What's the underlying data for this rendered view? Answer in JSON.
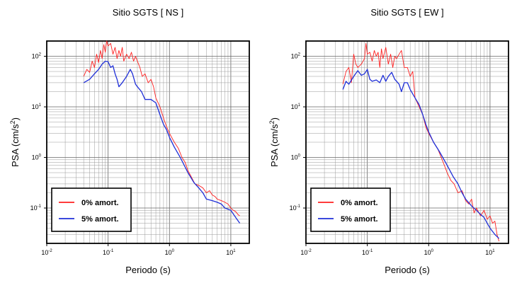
{
  "chart_data": [
    {
      "type": "line",
      "title": "Sitio SGTS [ NS ]",
      "xlabel": "Periodo (s)",
      "ylabel": "PSA (cm/s²)",
      "xscale": "log",
      "yscale": "log",
      "xlim": [
        0.01,
        20
      ],
      "ylim": [
        0.02,
        200
      ],
      "grid": true,
      "legend_position": "bottom-left",
      "x_ticks": [
        {
          "value": 0.01,
          "base": "10",
          "exp": "-2"
        },
        {
          "value": 0.1,
          "base": "10",
          "exp": "-1"
        },
        {
          "value": 1,
          "base": "10",
          "exp": "0"
        },
        {
          "value": 10,
          "base": "10",
          "exp": "1"
        }
      ],
      "y_ticks": [
        {
          "value": 0.1,
          "base": "10",
          "exp": "-1"
        },
        {
          "value": 1,
          "base": "10",
          "exp": "0"
        },
        {
          "value": 10,
          "base": "10",
          "exp": "1"
        },
        {
          "value": 100,
          "base": "10",
          "exp": "2"
        }
      ],
      "series": [
        {
          "name": "0% amort.",
          "color": "#ff2020",
          "x": [
            0.04,
            0.045,
            0.05,
            0.055,
            0.06,
            0.065,
            0.07,
            0.075,
            0.08,
            0.085,
            0.09,
            0.095,
            0.1,
            0.11,
            0.12,
            0.13,
            0.14,
            0.15,
            0.16,
            0.17,
            0.18,
            0.2,
            0.22,
            0.24,
            0.26,
            0.28,
            0.3,
            0.33,
            0.36,
            0.4,
            0.45,
            0.5,
            0.55,
            0.6,
            0.7,
            0.8,
            0.9,
            1.0,
            1.2,
            1.4,
            1.6,
            1.8,
            2.0,
            2.3,
            2.6,
            3.0,
            3.5,
            4.0,
            4.5,
            5.0,
            5.5,
            6.0,
            7.0,
            8.0,
            9.0,
            10.0,
            11.0,
            12.0,
            13.0,
            14.0
          ],
          "y": [
            40,
            55,
            48,
            80,
            60,
            110,
            75,
            130,
            90,
            170,
            120,
            200,
            160,
            180,
            110,
            150,
            90,
            130,
            100,
            150,
            80,
            110,
            90,
            120,
            80,
            100,
            80,
            60,
            40,
            45,
            30,
            35,
            25,
            15,
            10,
            6,
            4,
            3,
            2,
            1.5,
            1.0,
            0.8,
            0.55,
            0.4,
            0.3,
            0.28,
            0.25,
            0.2,
            0.22,
            0.18,
            0.17,
            0.15,
            0.14,
            0.13,
            0.12,
            0.1,
            0.09,
            0.085,
            0.075,
            0.07
          ]
        },
        {
          "name": "5% amort.",
          "color": "#1f2fd8",
          "x": [
            0.04,
            0.05,
            0.06,
            0.07,
            0.08,
            0.09,
            0.1,
            0.11,
            0.12,
            0.13,
            0.14,
            0.15,
            0.17,
            0.2,
            0.23,
            0.25,
            0.28,
            0.3,
            0.35,
            0.4,
            0.5,
            0.6,
            0.7,
            0.8,
            0.9,
            1.0,
            1.2,
            1.5,
            2.0,
            2.5,
            3.0,
            3.5,
            4.0,
            5.0,
            6.0,
            7.0,
            8.0,
            10.0,
            12.0,
            14.0
          ],
          "y": [
            30,
            35,
            45,
            55,
            70,
            80,
            78,
            60,
            65,
            45,
            35,
            25,
            30,
            40,
            55,
            45,
            28,
            25,
            20,
            14,
            14,
            12,
            7,
            4.5,
            3.5,
            2.5,
            1.6,
            1.0,
            0.5,
            0.32,
            0.25,
            0.2,
            0.15,
            0.14,
            0.13,
            0.12,
            0.1,
            0.09,
            0.065,
            0.05
          ]
        }
      ]
    },
    {
      "type": "line",
      "title": "Sitio SGTS [ EW ]",
      "xlabel": "Periodo (s)",
      "ylabel": "PSA (cm/s²)",
      "xscale": "log",
      "yscale": "log",
      "xlim": [
        0.01,
        20
      ],
      "ylim": [
        0.02,
        200
      ],
      "grid": true,
      "legend_position": "bottom-left",
      "x_ticks": [
        {
          "value": 0.01,
          "base": "10",
          "exp": "-2"
        },
        {
          "value": 0.1,
          "base": "10",
          "exp": "-1"
        },
        {
          "value": 1,
          "base": "10",
          "exp": "0"
        },
        {
          "value": 10,
          "base": "10",
          "exp": "1"
        }
      ],
      "y_ticks": [
        {
          "value": 0.1,
          "base": "10",
          "exp": "-1"
        },
        {
          "value": 1,
          "base": "10",
          "exp": "0"
        },
        {
          "value": 10,
          "base": "10",
          "exp": "1"
        },
        {
          "value": 100,
          "base": "10",
          "exp": "2"
        }
      ],
      "series": [
        {
          "name": "0% amort.",
          "color": "#ff2020",
          "x": [
            0.04,
            0.045,
            0.05,
            0.055,
            0.06,
            0.065,
            0.07,
            0.08,
            0.09,
            0.095,
            0.1,
            0.11,
            0.12,
            0.13,
            0.14,
            0.15,
            0.16,
            0.17,
            0.18,
            0.2,
            0.22,
            0.24,
            0.26,
            0.28,
            0.3,
            0.33,
            0.36,
            0.4,
            0.45,
            0.5,
            0.55,
            0.6,
            0.7,
            0.8,
            0.9,
            1.0,
            1.2,
            1.4,
            1.6,
            1.8,
            2.0,
            2.3,
            2.6,
            3.0,
            3.5,
            4.0,
            4.5,
            5.0,
            5.5,
            6.0,
            7.0,
            8.0,
            9.0,
            10.0,
            11.0,
            12.0,
            13.0,
            14.0
          ],
          "y": [
            28,
            50,
            60,
            30,
            110,
            70,
            60,
            70,
            90,
            180,
            110,
            120,
            80,
            130,
            100,
            120,
            60,
            140,
            90,
            150,
            70,
            110,
            60,
            100,
            90,
            110,
            130,
            60,
            60,
            40,
            50,
            15,
            10,
            7,
            4,
            3,
            2,
            1.5,
            1,
            0.7,
            0.5,
            0.35,
            0.3,
            0.2,
            0.22,
            0.14,
            0.12,
            0.15,
            0.08,
            0.1,
            0.07,
            0.09,
            0.06,
            0.07,
            0.05,
            0.055,
            0.03,
            0.022
          ]
        },
        {
          "name": "5% amort.",
          "color": "#1f2fd8",
          "x": [
            0.04,
            0.045,
            0.05,
            0.06,
            0.07,
            0.08,
            0.09,
            0.1,
            0.11,
            0.12,
            0.14,
            0.16,
            0.18,
            0.2,
            0.22,
            0.25,
            0.28,
            0.3,
            0.33,
            0.36,
            0.4,
            0.45,
            0.5,
            0.6,
            0.7,
            0.8,
            0.9,
            1.0,
            1.2,
            1.5,
            2.0,
            2.5,
            3.0,
            3.5,
            4.0,
            5.0,
            6.0,
            7.0,
            8.0,
            9.0,
            10.0,
            12.0,
            14.0
          ],
          "y": [
            22,
            32,
            28,
            40,
            52,
            42,
            45,
            55,
            35,
            32,
            34,
            30,
            42,
            32,
            40,
            48,
            35,
            32,
            28,
            20,
            30,
            30,
            22,
            15,
            11,
            7,
            4.5,
            3.2,
            2,
            1.3,
            0.7,
            0.42,
            0.3,
            0.2,
            0.15,
            0.11,
            0.09,
            0.075,
            0.065,
            0.05,
            0.04,
            0.03,
            0.025
          ]
        }
      ]
    }
  ]
}
